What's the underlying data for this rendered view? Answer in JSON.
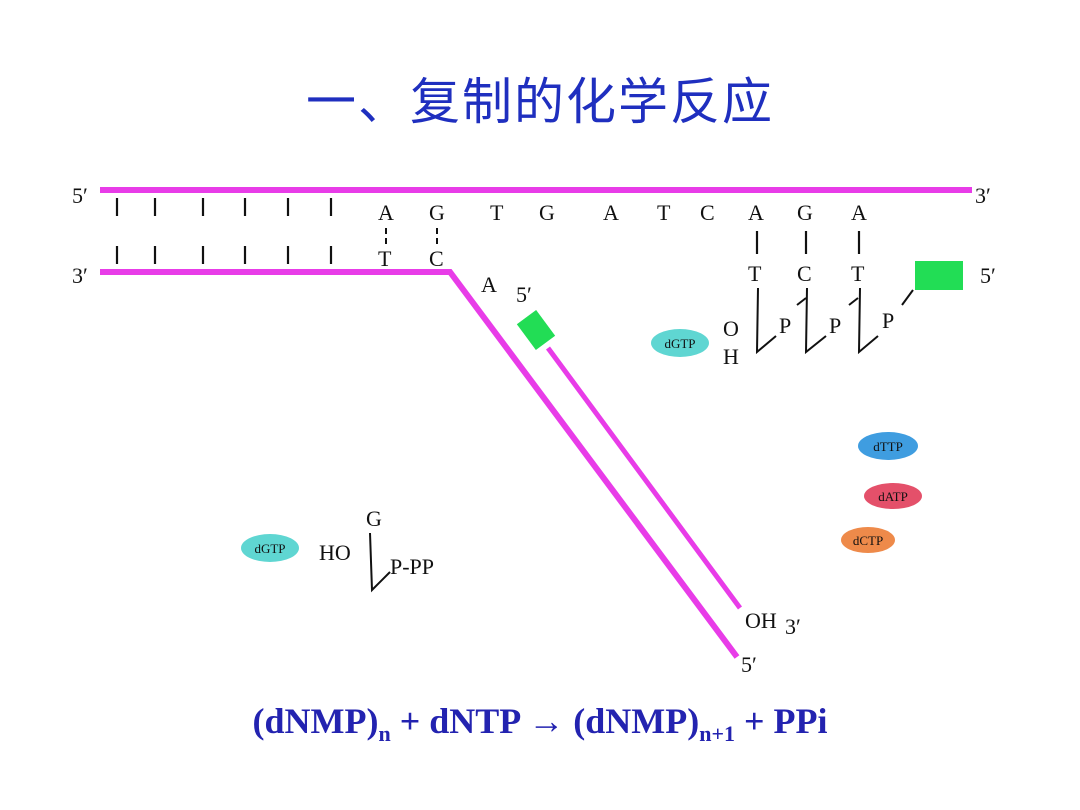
{
  "title": "一、复制的化学反应",
  "labels": {
    "top_left": "5′",
    "top_right": "3′",
    "mid_left": "3′",
    "mid_right": "5′",
    "primer_5": "5′",
    "lag_a": "A",
    "oh": "OH",
    "oh_3": "3′",
    "bottom_5": "5′"
  },
  "top_bases": [
    "A",
    "G",
    "T",
    "G",
    "A",
    "T",
    "C",
    "A",
    "G",
    "A"
  ],
  "left_paired": [
    "T",
    "C"
  ],
  "right_paired": [
    "T",
    "C",
    "T"
  ],
  "nascent": {
    "o": "O",
    "h": "H",
    "p": [
      "P",
      "P",
      "P"
    ]
  },
  "free_nucleotide": {
    "base": "G",
    "ho": "HO",
    "pp": "P-PP"
  },
  "pills": [
    {
      "label": "dGTP",
      "color": "#5fd6d2"
    },
    {
      "label": "dGTP",
      "color": "#5fd6d2"
    },
    {
      "label": "dTTP",
      "color": "#3f9de0"
    },
    {
      "label": "dATP",
      "color": "#e4506a"
    },
    {
      "label": "dCTP",
      "color": "#ee8a4a"
    }
  ],
  "colors": {
    "strand": "#e83ce8",
    "primer": "#22dd55",
    "title": "#1f2fbf",
    "equation": "#2323b0"
  },
  "equation": {
    "part1": "(dNMP)",
    "sub1": "n",
    "part2": " + dNTP → (dNMP)",
    "sub2": "n+1",
    "part3": " + PPi"
  }
}
